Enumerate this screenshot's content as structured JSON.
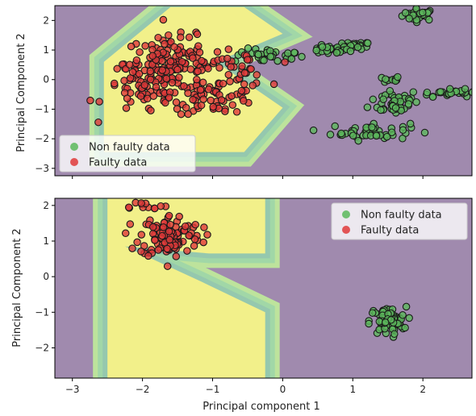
{
  "chart_data": [
    {
      "type": "scatter",
      "title": "",
      "xlabel": "",
      "ylabel": "Principal Component 2",
      "xlim": [
        -3.25,
        2.7
      ],
      "ylim": [
        -3.25,
        2.5
      ],
      "xticks": [
        -3,
        -2,
        -1,
        0,
        1,
        2
      ],
      "xtick_labels_visible": false,
      "yticks": [
        -3,
        -2,
        -1,
        0,
        1,
        2
      ],
      "ytick_labels": [
        "−3",
        "−2",
        "−1",
        "0",
        "1",
        "2"
      ],
      "grid": false,
      "legend_position": "lower-left",
      "background_color": "#a08aae",
      "decision_region": {
        "fill_color": "#f2f08a",
        "band_colors": [
          "#bde39c",
          "#a1d7a7",
          "#95c8ae"
        ],
        "polygon": [
          [
            -2.55,
            -2.45
          ],
          [
            -2.55,
            0.6
          ],
          [
            -1.6,
            2.45
          ],
          [
            -0.55,
            2.45
          ],
          [
            0.0,
            1.55
          ],
          [
            -0.95,
            0.6
          ],
          [
            0.0,
            -0.95
          ],
          [
            -0.55,
            -2.45
          ]
        ]
      },
      "series": [
        {
          "name": "Non faulty data",
          "color": "#5cb85c",
          "clusters": [
            {
              "center": [
                1.95,
                2.2
              ],
              "spread": [
                0.12,
                0.1
              ],
              "count": 30
            },
            {
              "center": [
                1.05,
                1.15
              ],
              "spread": [
                0.1,
                0.06
              ],
              "count": 25
            },
            {
              "center": [
                0.65,
                1.0
              ],
              "spread": [
                0.15,
                0.07
              ],
              "count": 25
            },
            {
              "center": [
                -0.2,
                0.8
              ],
              "spread": [
                0.25,
                0.12
              ],
              "count": 35
            },
            {
              "center": [
                1.55,
                0.0
              ],
              "spread": [
                0.06,
                0.06
              ],
              "count": 12
            },
            {
              "center": [
                1.6,
                -0.75
              ],
              "spread": [
                0.18,
                0.22
              ],
              "count": 45
            },
            {
              "center": [
                2.4,
                -0.45
              ],
              "spread": [
                0.25,
                0.06
              ],
              "count": 30
            },
            {
              "center": [
                1.25,
                -1.75
              ],
              "spread": [
                0.28,
                0.15
              ],
              "count": 50
            }
          ]
        },
        {
          "name": "Faulty data",
          "color": "#e03a3a",
          "clusters": [
            {
              "center": [
                -1.55,
                0.55
              ],
              "spread": [
                0.35,
                0.45
              ],
              "count": 130
            },
            {
              "center": [
                -1.95,
                -0.3
              ],
              "spread": [
                0.3,
                0.45
              ],
              "count": 70
            },
            {
              "center": [
                -0.95,
                -0.55
              ],
              "spread": [
                0.3,
                0.3
              ],
              "count": 60
            },
            {
              "center": [
                -0.6,
                0.35
              ],
              "spread": [
                0.2,
                0.3
              ],
              "count": 30
            }
          ]
        }
      ]
    },
    {
      "type": "scatter",
      "title": "",
      "xlabel": "Principal component 1",
      "ylabel": "Principal Component 2",
      "xlim": [
        -3.25,
        2.7
      ],
      "ylim": [
        -2.85,
        2.2
      ],
      "xticks": [
        -3,
        -2,
        -1,
        0,
        1,
        2
      ],
      "xtick_labels": [
        "−3",
        "−2",
        "−1",
        "0",
        "1",
        "2"
      ],
      "yticks": [
        -2,
        -1,
        0,
        1,
        2
      ],
      "ytick_labels": [
        "−2",
        "−1",
        "0",
        "1",
        "2"
      ],
      "grid": false,
      "legend_position": "top-right",
      "background_color": "#a08aae",
      "decision_region": {
        "fill_color": "#f2f08a",
        "band_colors": [
          "#bde39c",
          "#a1d7a7",
          "#95c8ae"
        ],
        "polygon": [
          [
            -2.5,
            -2.85
          ],
          [
            -2.5,
            2.2
          ],
          [
            -0.25,
            2.2
          ],
          [
            -0.25,
            0.65
          ],
          [
            -1.05,
            0.65
          ],
          [
            -2.25,
            0.85
          ],
          [
            -1.15,
            -0.15
          ],
          [
            -0.25,
            -1.0
          ],
          [
            -0.25,
            -2.85
          ]
        ]
      },
      "series": [
        {
          "name": "Non faulty data",
          "color": "#5cb85c",
          "clusters": [
            {
              "center": [
                1.5,
                -1.25
              ],
              "spread": [
                0.13,
                0.2
              ],
              "count": 70
            }
          ]
        },
        {
          "name": "Faulty data",
          "color": "#e03a3a",
          "clusters": [
            {
              "center": [
                -1.6,
                1.15
              ],
              "spread": [
                0.22,
                0.3
              ],
              "count": 110
            },
            {
              "center": [
                -2.0,
                2.0
              ],
              "spread": [
                0.18,
                0.06
              ],
              "count": 12
            }
          ]
        }
      ]
    }
  ]
}
